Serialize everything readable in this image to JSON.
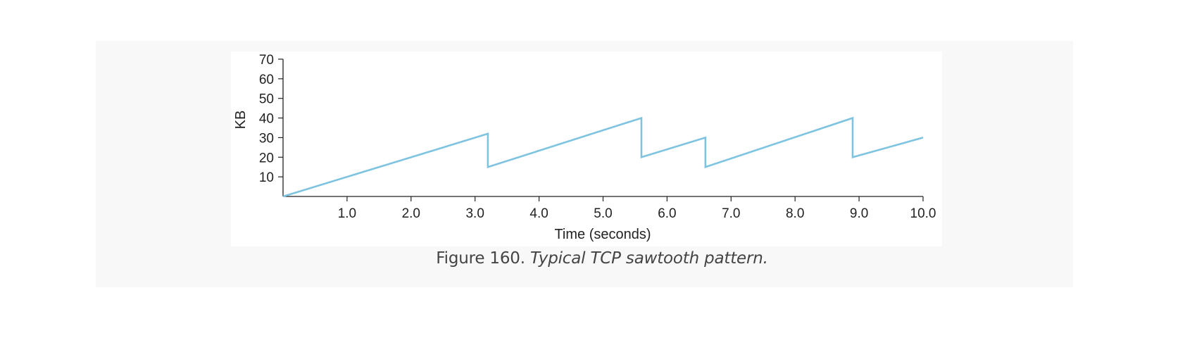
{
  "caption": {
    "number": "Figure 160.",
    "text": "Typical TCP sawtooth pattern."
  },
  "colors": {
    "line": "#7ec4e0",
    "axis": "#222222",
    "panel_bg": "#f8f8f8"
  },
  "chart_data": {
    "type": "line",
    "title": "",
    "xlabel": "Time (seconds)",
    "ylabel": "KB",
    "xlim": [
      0,
      10
    ],
    "ylim": [
      0,
      70
    ],
    "x_ticks": [
      1,
      2,
      3,
      4,
      5,
      6,
      7,
      8,
      9,
      10
    ],
    "x_tick_labels": [
      "1.0",
      "2.0",
      "3.0",
      "4.0",
      "5.0",
      "6.0",
      "7.0",
      "8.0",
      "9.0",
      "10.0"
    ],
    "y_ticks": [
      10,
      20,
      30,
      40,
      50,
      60,
      70
    ],
    "y_tick_labels": [
      "10",
      "20",
      "30",
      "40",
      "50",
      "60",
      "70"
    ],
    "grid": false,
    "series": [
      {
        "x": [
          0,
          3.2,
          3.2,
          5.6,
          5.6,
          6.6,
          6.6,
          8.9,
          8.9,
          10.0
        ],
        "y": [
          0,
          32,
          15,
          40,
          20,
          30,
          15,
          40,
          20,
          30
        ]
      }
    ]
  }
}
